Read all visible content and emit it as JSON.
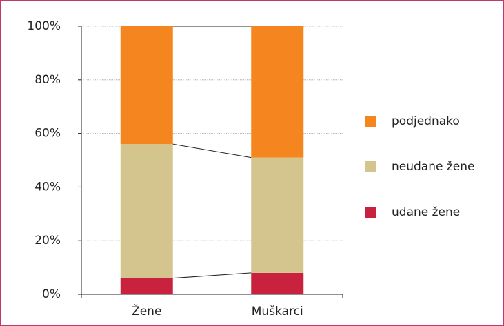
{
  "chart_data": {
    "type": "stacked_bar",
    "categories": [
      "Žene",
      "Muškarci"
    ],
    "series": [
      {
        "name": "udane žene",
        "color": "#c8223f",
        "values": [
          6,
          8
        ]
      },
      {
        "name": "neudane žene",
        "color": "#d4c58e",
        "values": [
          50,
          43
        ]
      },
      {
        "name": "podjednako",
        "color": "#f5861f",
        "values": [
          44,
          49
        ]
      }
    ],
    "ylim": [
      0,
      100
    ],
    "yticks": [
      {
        "value": 0,
        "label": "0%"
      },
      {
        "value": 20,
        "label": "20%"
      },
      {
        "value": 40,
        "label": "40%"
      },
      {
        "value": 60,
        "label": "60%"
      },
      {
        "value": 80,
        "label": "80%"
      },
      {
        "value": 100,
        "label": "100%"
      }
    ],
    "grid": true,
    "legend": "right"
  }
}
